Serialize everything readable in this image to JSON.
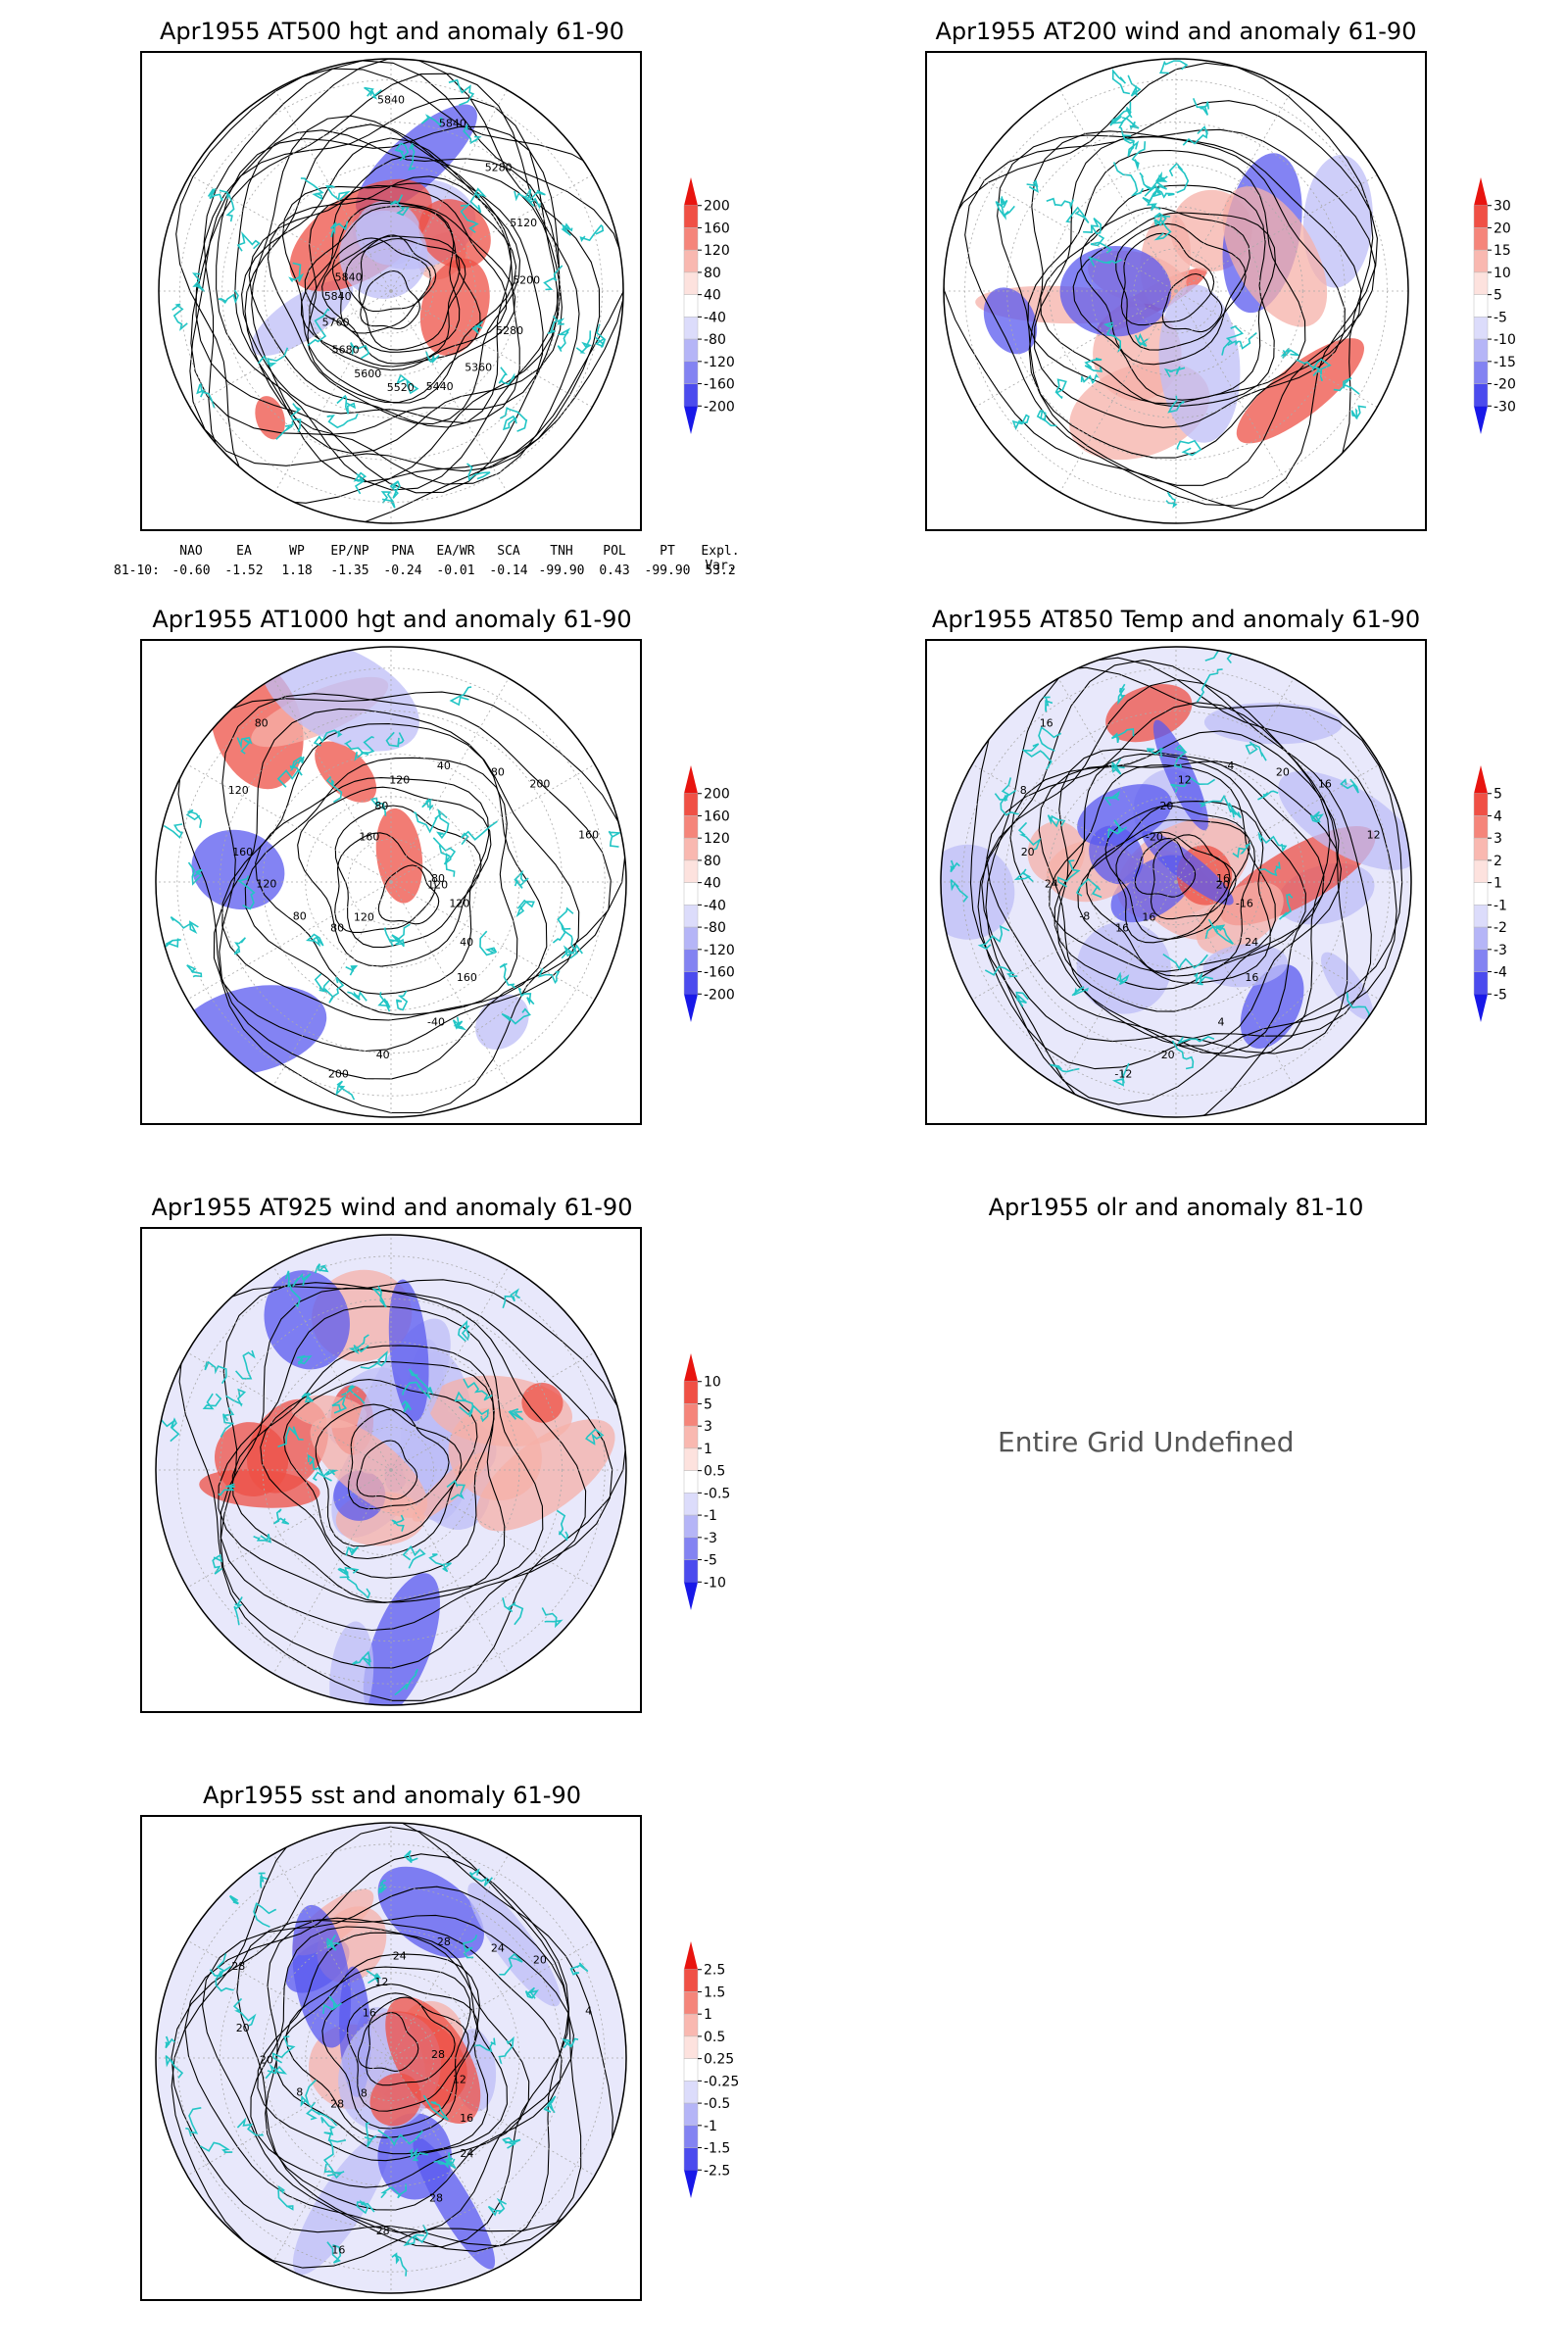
{
  "panels": [
    {
      "id": "p1",
      "title": "Apr1955 AT500 hgt and anomaly 61-90",
      "colorbar": [
        "200",
        "160",
        "120",
        "80",
        "40",
        "-40",
        "-80",
        "-120",
        "-160",
        "-200"
      ],
      "contour_labels": [
        "5840",
        "5840",
        "5280",
        "5120",
        "5200",
        "5280",
        "5360",
        "5440",
        "5520",
        "5600",
        "5680",
        "5760",
        "5840",
        "5840"
      ]
    },
    {
      "id": "p2",
      "title": "Apr1955 AT200 wind and anomaly 61-90",
      "colorbar": [
        "30",
        "20",
        "15",
        "10",
        "5",
        "-5",
        "-10",
        "-15",
        "-20",
        "-30"
      ]
    },
    {
      "id": "p3",
      "title": "Apr1955 AT1000 hgt and anomaly 61-90",
      "colorbar": [
        "200",
        "160",
        "120",
        "80",
        "40",
        "-40",
        "-80",
        "-120",
        "-160",
        "-200"
      ],
      "contour_labels": [
        "80",
        "80",
        "120",
        "160",
        "160",
        "200",
        "200",
        "160",
        "120",
        "80",
        "40",
        "-40",
        "120",
        "160",
        "120",
        "80",
        "40",
        "120",
        "80",
        "40",
        "80",
        "120"
      ]
    },
    {
      "id": "p4",
      "title": "Apr1955 AT850 Temp and anomaly 61-90",
      "colorbar": [
        "5",
        "4",
        "3",
        "2",
        "1",
        "-1",
        "-2",
        "-3",
        "-4",
        "-5"
      ],
      "contour_labels": [
        "16",
        "16",
        "12",
        "16",
        "20",
        "16",
        "-12",
        "-20",
        "-16",
        "-8",
        "-4",
        "4",
        "8",
        "12",
        "16",
        "20",
        "24",
        "24",
        "20",
        "20",
        "16",
        "20"
      ]
    },
    {
      "id": "p5",
      "title": "Apr1955 AT925 wind and anomaly 61-90",
      "colorbar": [
        "10",
        "5",
        "3",
        "1",
        "0.5",
        "-0.5",
        "-1",
        "-3",
        "-5",
        "-10"
      ]
    },
    {
      "id": "p6",
      "title": "Apr1955 olr and anomaly 81-10",
      "message": "Entire Grid Undefined"
    },
    {
      "id": "p7",
      "title": "Apr1955 sst and anomaly 61-90",
      "colorbar": [
        "2.5",
        "1.5",
        "1",
        "0.5",
        "0.25",
        "-0.25",
        "-0.5",
        "-1",
        "-1.5",
        "-2.5"
      ],
      "contour_labels": [
        "28",
        "28",
        "24",
        "24",
        "20",
        "20",
        "16",
        "16",
        "12",
        "8",
        "28",
        "28",
        "28",
        "4",
        "8",
        "12",
        "16",
        "20",
        "24",
        "28"
      ]
    }
  ],
  "indices": {
    "headers": [
      "NAO",
      "EA",
      "WP",
      "EP/NP",
      "PNA",
      "EA/WR",
      "SCA",
      "TNH",
      "POL",
      "PT",
      "Expl. Var."
    ],
    "row_label": "81-10:",
    "values": [
      "-0.60",
      "-1.52",
      "1.18",
      "-1.35",
      "-0.24",
      "-0.01",
      "-0.14",
      "-99.90",
      "0.43",
      "-99.90",
      "53.2"
    ]
  },
  "colors": {
    "coast": "#22c5c5",
    "warm": "#e0201c",
    "cool": "#1f2ee8"
  }
}
